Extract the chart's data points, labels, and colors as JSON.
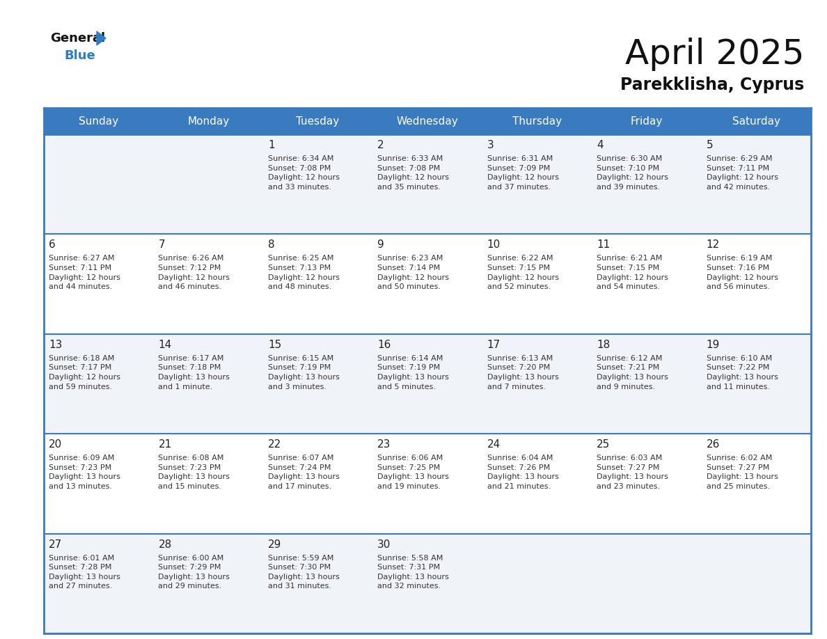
{
  "title": "April 2025",
  "subtitle": "Parekklisha, Cyprus",
  "days_of_week": [
    "Sunday",
    "Monday",
    "Tuesday",
    "Wednesday",
    "Thursday",
    "Friday",
    "Saturday"
  ],
  "header_bg": "#3a7abf",
  "header_text": "#ffffff",
  "cell_bg_odd": "#f0f4f8",
  "cell_bg_even": "#ffffff",
  "day_num_color": "#222222",
  "info_text_color": "#333333",
  "border_color": "#3a7abf",
  "calendar": [
    [
      {
        "day": null,
        "info": null
      },
      {
        "day": null,
        "info": null
      },
      {
        "day": 1,
        "info": "Sunrise: 6:34 AM\nSunset: 7:08 PM\nDaylight: 12 hours\nand 33 minutes."
      },
      {
        "day": 2,
        "info": "Sunrise: 6:33 AM\nSunset: 7:08 PM\nDaylight: 12 hours\nand 35 minutes."
      },
      {
        "day": 3,
        "info": "Sunrise: 6:31 AM\nSunset: 7:09 PM\nDaylight: 12 hours\nand 37 minutes."
      },
      {
        "day": 4,
        "info": "Sunrise: 6:30 AM\nSunset: 7:10 PM\nDaylight: 12 hours\nand 39 minutes."
      },
      {
        "day": 5,
        "info": "Sunrise: 6:29 AM\nSunset: 7:11 PM\nDaylight: 12 hours\nand 42 minutes."
      }
    ],
    [
      {
        "day": 6,
        "info": "Sunrise: 6:27 AM\nSunset: 7:11 PM\nDaylight: 12 hours\nand 44 minutes."
      },
      {
        "day": 7,
        "info": "Sunrise: 6:26 AM\nSunset: 7:12 PM\nDaylight: 12 hours\nand 46 minutes."
      },
      {
        "day": 8,
        "info": "Sunrise: 6:25 AM\nSunset: 7:13 PM\nDaylight: 12 hours\nand 48 minutes."
      },
      {
        "day": 9,
        "info": "Sunrise: 6:23 AM\nSunset: 7:14 PM\nDaylight: 12 hours\nand 50 minutes."
      },
      {
        "day": 10,
        "info": "Sunrise: 6:22 AM\nSunset: 7:15 PM\nDaylight: 12 hours\nand 52 minutes."
      },
      {
        "day": 11,
        "info": "Sunrise: 6:21 AM\nSunset: 7:15 PM\nDaylight: 12 hours\nand 54 minutes."
      },
      {
        "day": 12,
        "info": "Sunrise: 6:19 AM\nSunset: 7:16 PM\nDaylight: 12 hours\nand 56 minutes."
      }
    ],
    [
      {
        "day": 13,
        "info": "Sunrise: 6:18 AM\nSunset: 7:17 PM\nDaylight: 12 hours\nand 59 minutes."
      },
      {
        "day": 14,
        "info": "Sunrise: 6:17 AM\nSunset: 7:18 PM\nDaylight: 13 hours\nand 1 minute."
      },
      {
        "day": 15,
        "info": "Sunrise: 6:15 AM\nSunset: 7:19 PM\nDaylight: 13 hours\nand 3 minutes."
      },
      {
        "day": 16,
        "info": "Sunrise: 6:14 AM\nSunset: 7:19 PM\nDaylight: 13 hours\nand 5 minutes."
      },
      {
        "day": 17,
        "info": "Sunrise: 6:13 AM\nSunset: 7:20 PM\nDaylight: 13 hours\nand 7 minutes."
      },
      {
        "day": 18,
        "info": "Sunrise: 6:12 AM\nSunset: 7:21 PM\nDaylight: 13 hours\nand 9 minutes."
      },
      {
        "day": 19,
        "info": "Sunrise: 6:10 AM\nSunset: 7:22 PM\nDaylight: 13 hours\nand 11 minutes."
      }
    ],
    [
      {
        "day": 20,
        "info": "Sunrise: 6:09 AM\nSunset: 7:23 PM\nDaylight: 13 hours\nand 13 minutes."
      },
      {
        "day": 21,
        "info": "Sunrise: 6:08 AM\nSunset: 7:23 PM\nDaylight: 13 hours\nand 15 minutes."
      },
      {
        "day": 22,
        "info": "Sunrise: 6:07 AM\nSunset: 7:24 PM\nDaylight: 13 hours\nand 17 minutes."
      },
      {
        "day": 23,
        "info": "Sunrise: 6:06 AM\nSunset: 7:25 PM\nDaylight: 13 hours\nand 19 minutes."
      },
      {
        "day": 24,
        "info": "Sunrise: 6:04 AM\nSunset: 7:26 PM\nDaylight: 13 hours\nand 21 minutes."
      },
      {
        "day": 25,
        "info": "Sunrise: 6:03 AM\nSunset: 7:27 PM\nDaylight: 13 hours\nand 23 minutes."
      },
      {
        "day": 26,
        "info": "Sunrise: 6:02 AM\nSunset: 7:27 PM\nDaylight: 13 hours\nand 25 minutes."
      }
    ],
    [
      {
        "day": 27,
        "info": "Sunrise: 6:01 AM\nSunset: 7:28 PM\nDaylight: 13 hours\nand 27 minutes."
      },
      {
        "day": 28,
        "info": "Sunrise: 6:00 AM\nSunset: 7:29 PM\nDaylight: 13 hours\nand 29 minutes."
      },
      {
        "day": 29,
        "info": "Sunrise: 5:59 AM\nSunset: 7:30 PM\nDaylight: 13 hours\nand 31 minutes."
      },
      {
        "day": 30,
        "info": "Sunrise: 5:58 AM\nSunset: 7:31 PM\nDaylight: 13 hours\nand 32 minutes."
      },
      {
        "day": null,
        "info": null
      },
      {
        "day": null,
        "info": null
      },
      {
        "day": null,
        "info": null
      }
    ]
  ],
  "fig_width": 11.88,
  "fig_height": 9.18,
  "title_fontsize": 36,
  "subtitle_fontsize": 17,
  "header_fontsize": 11,
  "day_num_fontsize": 11,
  "info_fontsize": 8
}
